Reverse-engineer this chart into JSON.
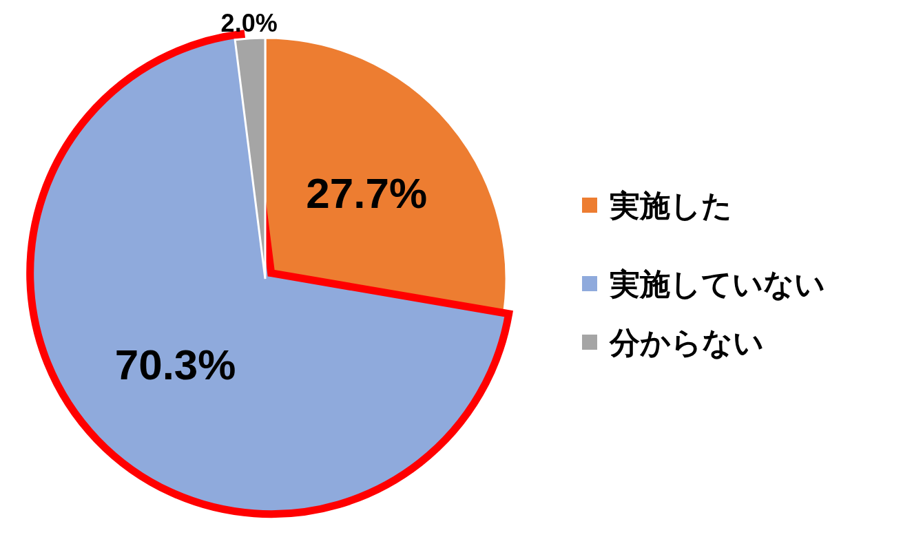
{
  "chart_data": {
    "type": "pie",
    "categories": [
      "実施した",
      "実施していない",
      "分からない"
    ],
    "values": [
      27.7,
      70.3,
      2.0
    ],
    "colors": [
      "#ed7d31",
      "#8faadc",
      "#a5a5a5"
    ],
    "value_labels": [
      "27.7%",
      "70.3%",
      "2.0%"
    ],
    "legend": "right"
  }
}
